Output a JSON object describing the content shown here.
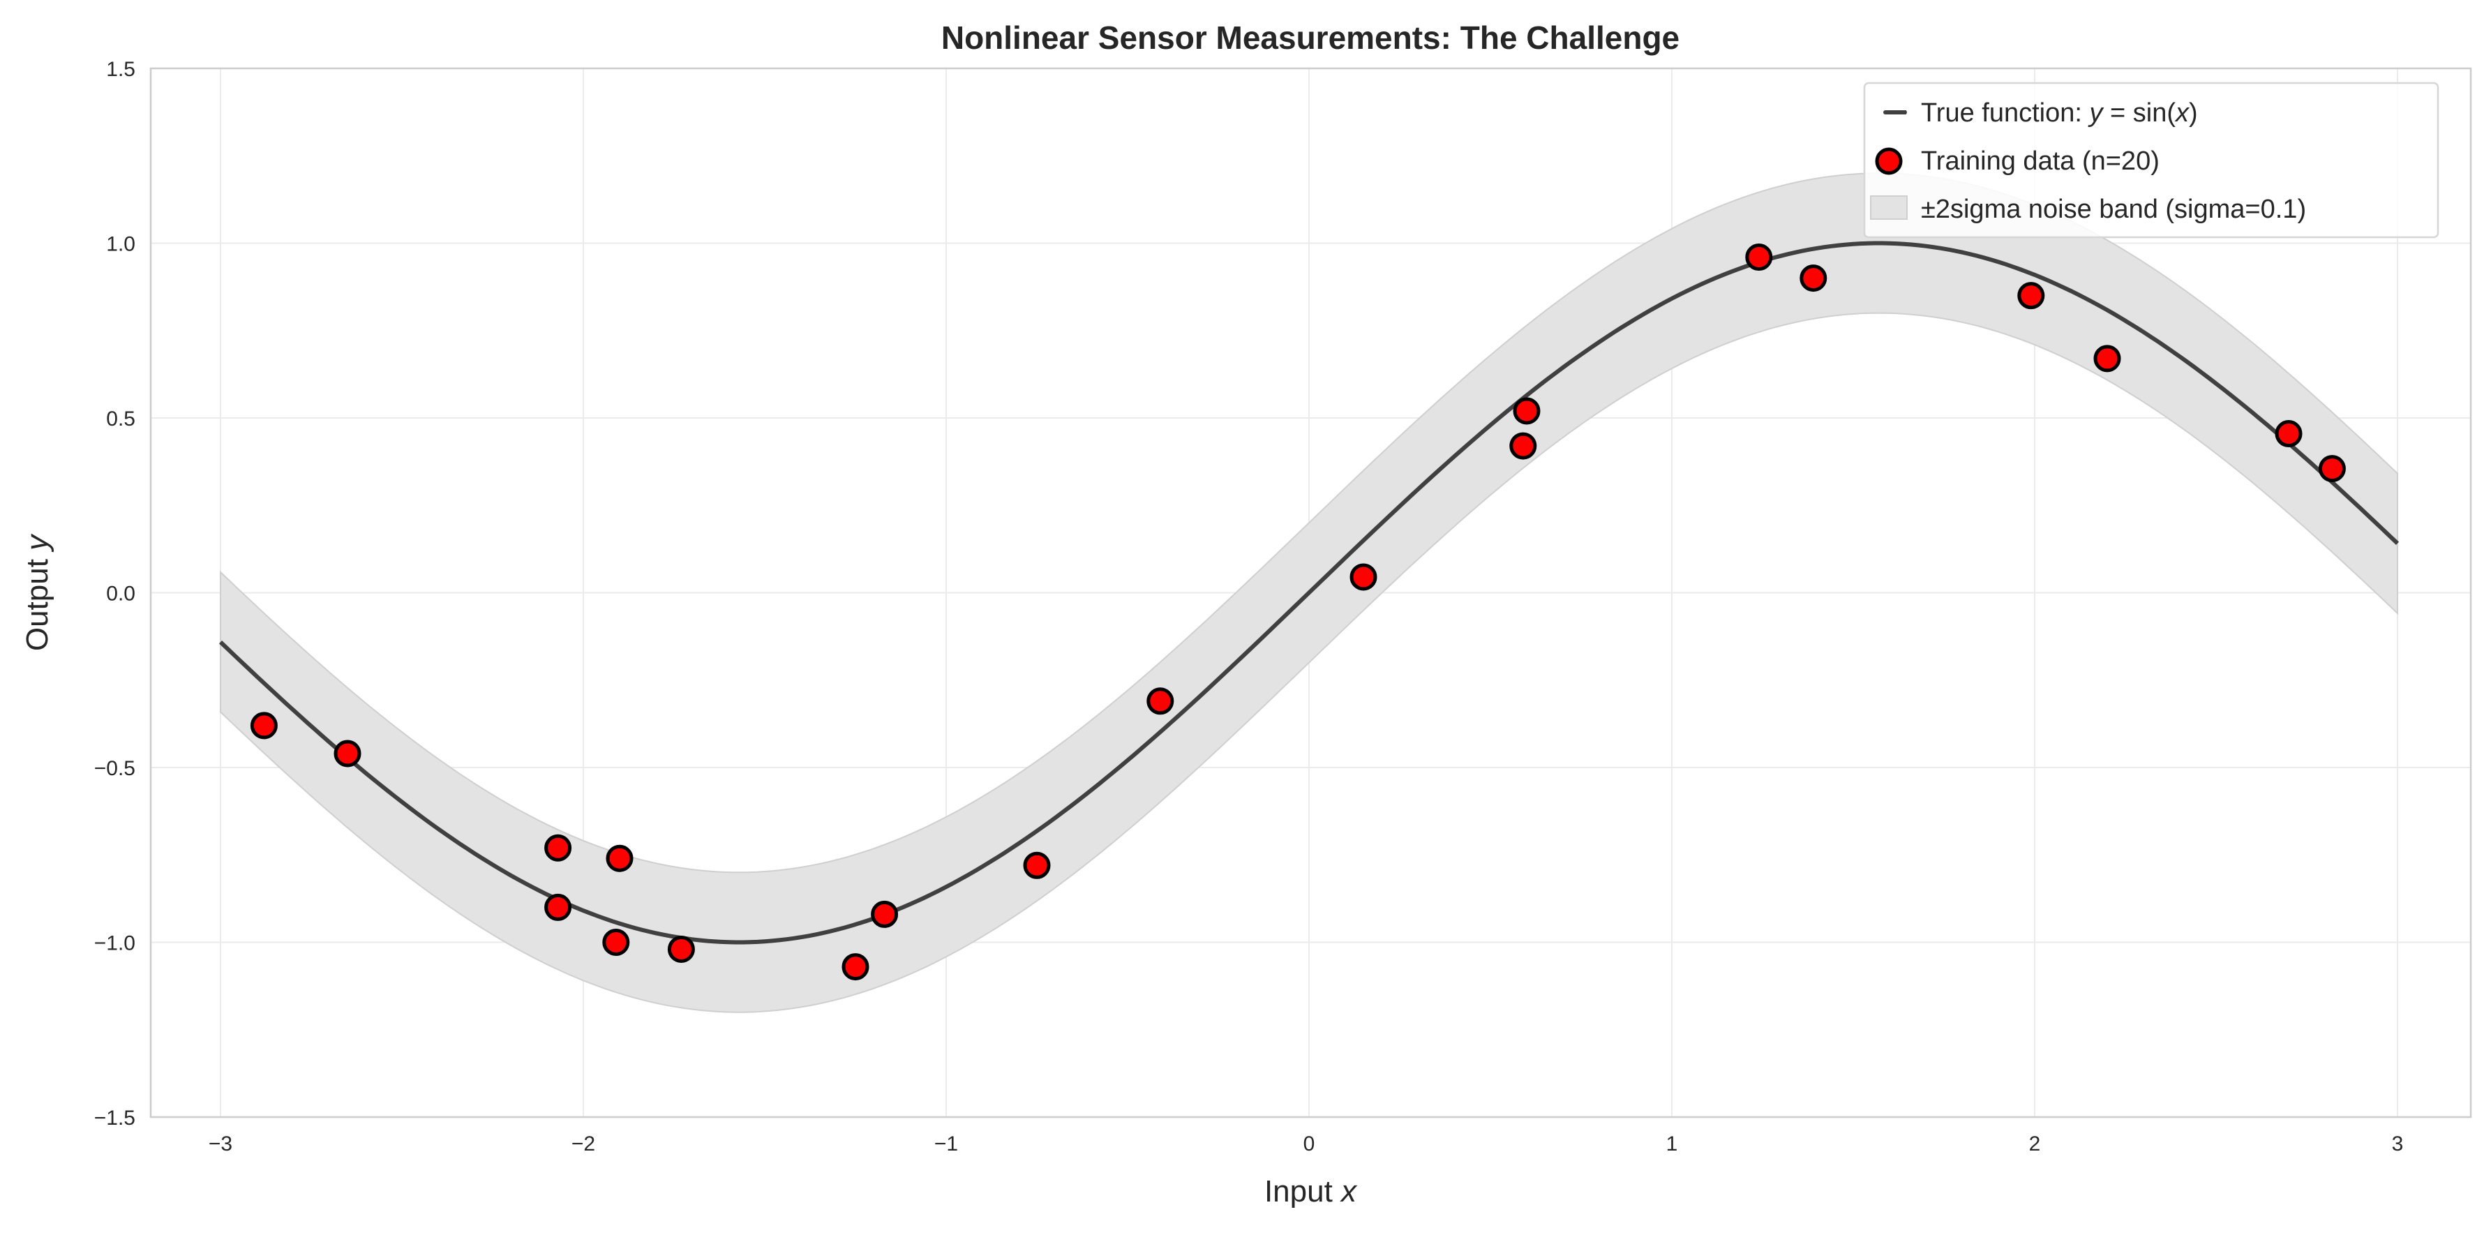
{
  "chart_data": {
    "type": "scatter",
    "title": "Nonlinear Sensor Measurements: The Challenge",
    "xlabel": "Input x",
    "ylabel": "Output y",
    "xlim": [
      -3.2,
      3.2
    ],
    "ylim": [
      -1.5,
      1.5
    ],
    "xticks": [
      -3,
      -2,
      -1,
      0,
      1,
      2,
      3
    ],
    "xtick_labels": [
      "−3",
      "−2",
      "−1",
      "0",
      "1",
      "2",
      "3"
    ],
    "yticks": [
      -1.5,
      -1.0,
      -0.5,
      0.0,
      0.5,
      1.0,
      1.5
    ],
    "ytick_labels": [
      "−1.5",
      "−1.0",
      "−0.5",
      "0.0",
      "0.5",
      "1.0",
      "1.5"
    ],
    "grid": true,
    "legend_position": "top-right",
    "series": [
      {
        "name": "True function: y = sin(x)",
        "kind": "line",
        "function": "sin",
        "x_range": [
          -3,
          3
        ],
        "color": "#404040"
      },
      {
        "name": "Training data (n=20)",
        "kind": "scatter",
        "color": "#ff0000",
        "edge_color": "#000000",
        "x": [
          -2.88,
          -2.65,
          -2.07,
          -2.07,
          -1.9,
          -1.91,
          -1.73,
          -1.25,
          -1.17,
          -0.75,
          -0.41,
          0.15,
          0.59,
          0.6,
          1.24,
          1.39,
          1.99,
          2.2,
          2.7,
          2.82
        ],
        "y": [
          -0.38,
          -0.46,
          -0.73,
          -0.9,
          -0.76,
          -1.0,
          -1.02,
          -1.07,
          -0.92,
          -0.78,
          -0.31,
          0.045,
          0.42,
          0.52,
          0.96,
          0.9,
          0.85,
          0.67,
          0.455,
          0.355
        ]
      },
      {
        "name": "±2sigma noise band (sigma=0.1)",
        "kind": "band",
        "offset": 0.2,
        "color": "#e3e3e3"
      }
    ]
  }
}
